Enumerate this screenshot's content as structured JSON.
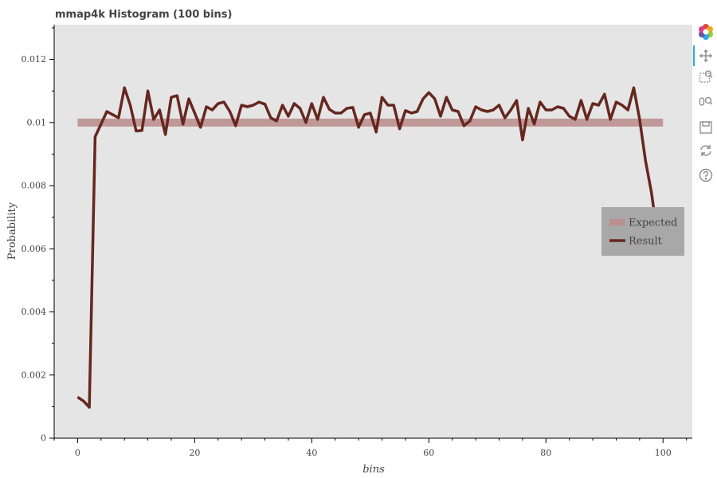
{
  "toolbar": {
    "tools": [
      "bokeh-logo-icon",
      "pan-icon",
      "box-zoom-icon",
      "wheel-zoom-icon",
      "save-icon",
      "reset-icon",
      "help-icon"
    ],
    "active_tool": "pan-icon"
  },
  "chart_data": {
    "type": "line",
    "title": "mmap4k Histogram (100 bins)",
    "xlabel": "bins",
    "ylabel": "Probability",
    "xlim": [
      -4,
      105
    ],
    "ylim": [
      0,
      0.0131
    ],
    "x_ticks": [
      0,
      20,
      40,
      60,
      80,
      100
    ],
    "x_tick_labels": [
      "0",
      "20",
      "40",
      "60",
      "80",
      "100"
    ],
    "y_ticks": [
      0,
      0.002,
      0.004,
      0.006,
      0.008,
      0.01,
      0.012
    ],
    "y_tick_labels": [
      "0",
      "0.002",
      "0.004",
      "0.006",
      "0.008",
      "0.01",
      "0.012"
    ],
    "grid": false,
    "background": "#e5e5e5",
    "legend_position": "right",
    "series": [
      {
        "name": "Expected",
        "color": "#bc8f8f",
        "style": "thick",
        "x": [
          0,
          100
        ],
        "y": [
          0.01,
          0.01
        ]
      },
      {
        "name": "Result",
        "color": "#66271f",
        "style": "line",
        "x": [
          0,
          1,
          2,
          3,
          4,
          5,
          6,
          7,
          8,
          9,
          10,
          11,
          12,
          13,
          14,
          15,
          16,
          17,
          18,
          19,
          20,
          21,
          22,
          23,
          24,
          25,
          26,
          27,
          28,
          29,
          30,
          31,
          32,
          33,
          34,
          35,
          36,
          37,
          38,
          39,
          40,
          41,
          42,
          43,
          44,
          45,
          46,
          47,
          48,
          49,
          50,
          51,
          52,
          53,
          54,
          55,
          56,
          57,
          58,
          59,
          60,
          61,
          62,
          63,
          64,
          65,
          66,
          67,
          68,
          69,
          70,
          71,
          72,
          73,
          74,
          75,
          76,
          77,
          78,
          79,
          80,
          81,
          82,
          83,
          84,
          85,
          86,
          87,
          88,
          89,
          90,
          91,
          92,
          93,
          94,
          95,
          96,
          97,
          98,
          99
        ],
        "y": [
          0.0013,
          0.00118,
          0.00098,
          0.00955,
          0.00995,
          0.01035,
          0.01025,
          0.01015,
          0.0111,
          0.01055,
          0.00973,
          0.00975,
          0.011,
          0.0101,
          0.0104,
          0.00962,
          0.0108,
          0.01085,
          0.00995,
          0.01075,
          0.0103,
          0.00985,
          0.0105,
          0.0104,
          0.0106,
          0.01065,
          0.01035,
          0.0099,
          0.01055,
          0.0105,
          0.01055,
          0.01065,
          0.01058,
          0.01015,
          0.01005,
          0.01055,
          0.0102,
          0.0106,
          0.01045,
          0.01,
          0.0106,
          0.0101,
          0.0108,
          0.01042,
          0.0103,
          0.0103,
          0.01045,
          0.01048,
          0.00985,
          0.01025,
          0.0103,
          0.0097,
          0.0108,
          0.01055,
          0.01055,
          0.0098,
          0.01038,
          0.0103,
          0.01035,
          0.01075,
          0.01095,
          0.01075,
          0.0102,
          0.0108,
          0.0104,
          0.01035,
          0.0099,
          0.01005,
          0.0105,
          0.0104,
          0.01035,
          0.0104,
          0.01055,
          0.01015,
          0.0104,
          0.0107,
          0.00945,
          0.01045,
          0.00995,
          0.01065,
          0.0104,
          0.0104,
          0.0105,
          0.01045,
          0.0102,
          0.0101,
          0.0107,
          0.0101,
          0.0106,
          0.01055,
          0.0109,
          0.0101,
          0.01065,
          0.01055,
          0.0104,
          0.0111,
          0.0101,
          0.0088,
          0.0078,
          0.0065
        ]
      }
    ]
  }
}
